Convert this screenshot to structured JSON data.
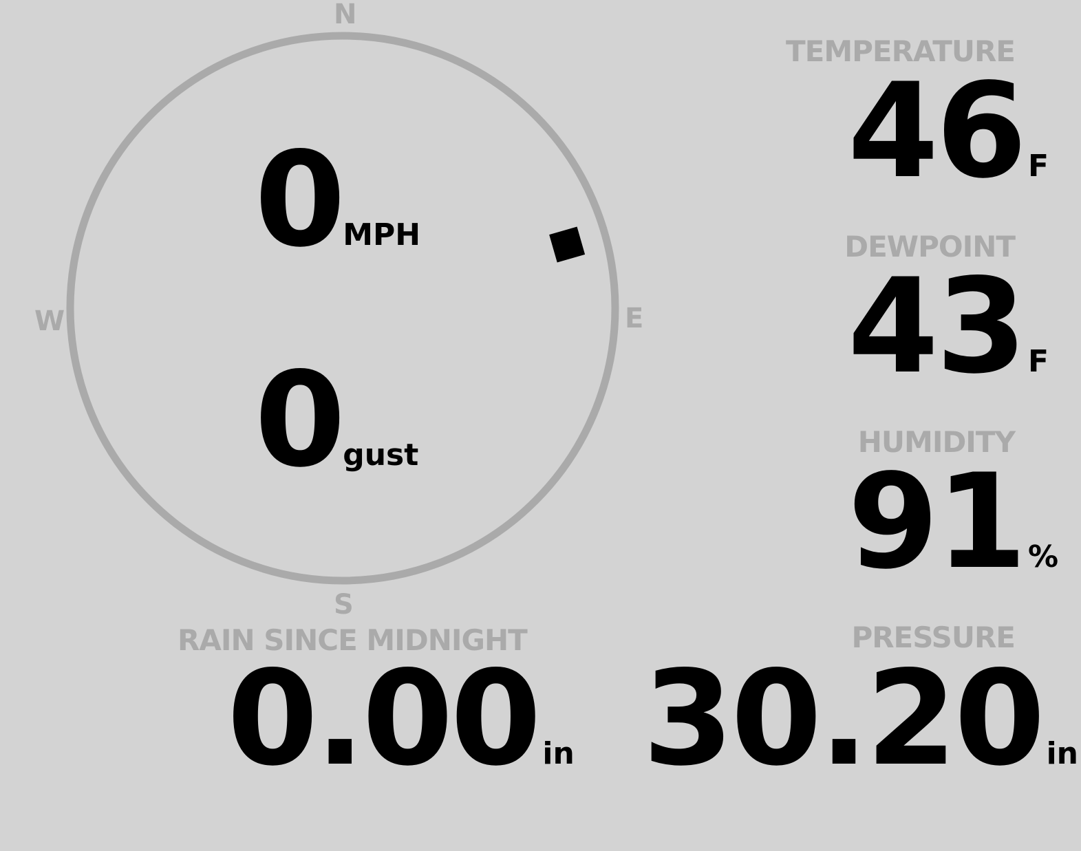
{
  "compass": {
    "north": "N",
    "south": "S",
    "east": "E",
    "west": "W",
    "wind_direction_deg": 74,
    "ring_color": "#aaaaaa",
    "marker_color": "#000000"
  },
  "wind": {
    "speed": "0",
    "speed_unit": "MPH",
    "gust": "0",
    "gust_unit": "gust"
  },
  "temperature": {
    "label": "TEMPERATURE",
    "value": "46",
    "unit": "F"
  },
  "dewpoint": {
    "label": "DEWPOINT",
    "value": "43",
    "unit": "F"
  },
  "humidity": {
    "label": "HUMIDITY",
    "value": "91",
    "unit": "%"
  },
  "rain": {
    "label": "RAIN SINCE MIDNIGHT",
    "value": "0.00",
    "unit": "in"
  },
  "pressure": {
    "label": "PRESSURE",
    "value": "30.20",
    "unit": "in"
  }
}
